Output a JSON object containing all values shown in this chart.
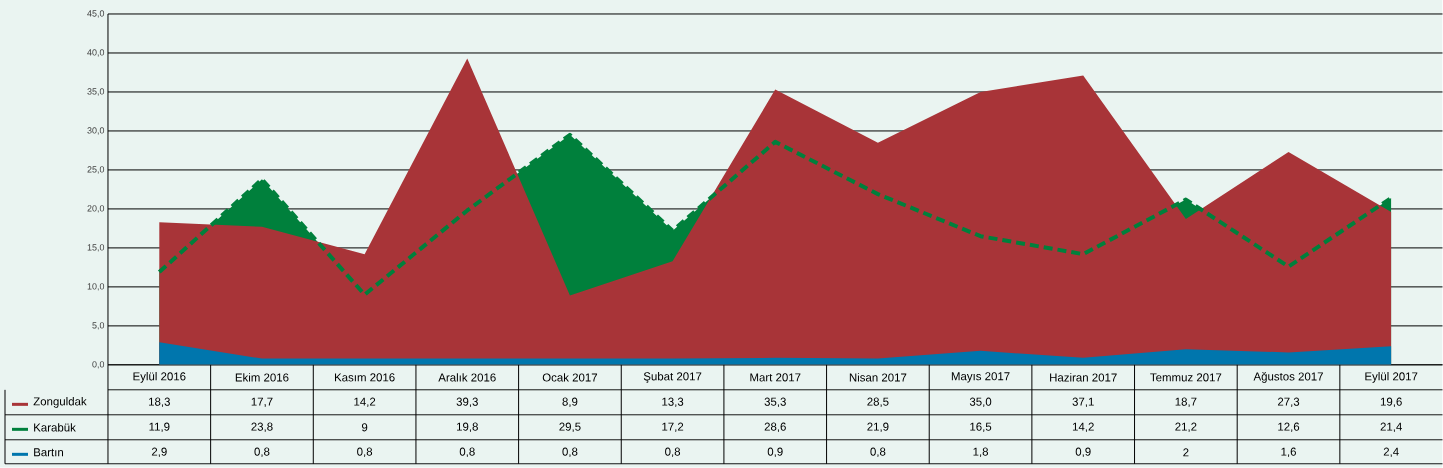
{
  "chart_data": {
    "type": "area",
    "categories": [
      "Eylül 2016",
      "Ekim 2016",
      "Kasım 2016",
      "Aralık 2016",
      "Ocak 2017",
      "Şubat 2017",
      "Mart 2017",
      "Nisan 2017",
      "Mayıs 2017",
      "Haziran 2017",
      "Temmuz 2017",
      "Ağustos 2017",
      "Eylül 2017"
    ],
    "series": [
      {
        "name": "Zonguldak",
        "color": "#a83438",
        "values": [
          18.3,
          17.7,
          14.2,
          39.3,
          8.9,
          13.3,
          35.3,
          28.5,
          35.0,
          37.1,
          18.7,
          27.3,
          19.6
        ],
        "value_labels": [
          "18,3",
          "17,7",
          "14,2",
          "39,3",
          "8,9",
          "13,3",
          "35,3",
          "28,5",
          "35,0",
          "37,1",
          "18,7",
          "27,3",
          "19,6"
        ]
      },
      {
        "name": "Karabük",
        "color": "#00803c",
        "line_style": "dashed",
        "values": [
          11.9,
          23.8,
          9,
          19.8,
          29.5,
          17.2,
          28.6,
          21.9,
          16.5,
          14.2,
          21.2,
          12.6,
          21.4
        ],
        "value_labels": [
          "11,9",
          "23,8",
          "9",
          "19,8",
          "29,5",
          "17,2",
          "28,6",
          "21,9",
          "16,5",
          "14,2",
          "21,2",
          "12,6",
          "21,4"
        ]
      },
      {
        "name": "Bartın",
        "color": "#0076ad",
        "values": [
          2.9,
          0.8,
          0.8,
          0.8,
          0.8,
          0.8,
          0.9,
          0.8,
          1.8,
          0.9,
          2,
          1.6,
          2.4
        ],
        "value_labels": [
          "2,9",
          "0,8",
          "0,8",
          "0,8",
          "0,8",
          "0,8",
          "0,9",
          "0,8",
          "1,8",
          "0,9",
          "2",
          "1,6",
          "2,4"
        ]
      }
    ],
    "ylim": [
      0,
      45
    ],
    "yticks": [
      {
        "value": 0,
        "label": "0,0"
      },
      {
        "value": 5,
        "label": "5,0"
      },
      {
        "value": 10,
        "label": "10,0"
      },
      {
        "value": 15,
        "label": "15,0"
      },
      {
        "value": 20,
        "label": "20,0"
      },
      {
        "value": 25,
        "label": "25,0"
      },
      {
        "value": 30,
        "label": "30,0"
      },
      {
        "value": 35,
        "label": "35,0"
      },
      {
        "value": 40,
        "label": "40,0"
      },
      {
        "value": 45,
        "label": "45,0"
      }
    ],
    "grid": "y",
    "legend": "bottom"
  }
}
